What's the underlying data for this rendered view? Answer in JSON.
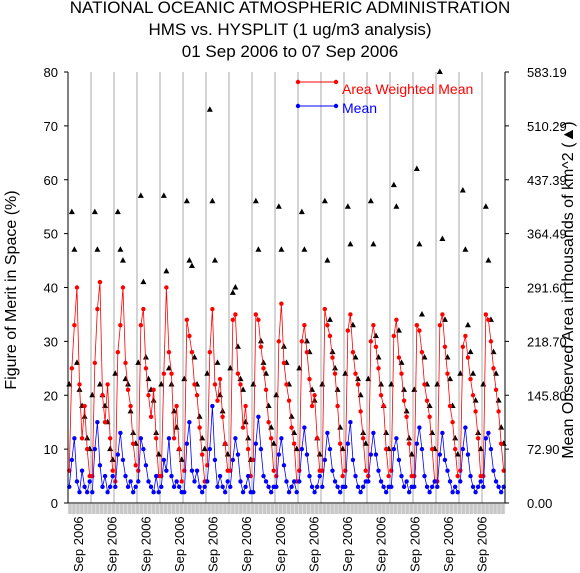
{
  "chart_data": {
    "type": "line",
    "title": [
      "NATIONAL OCEANIC ATMOSPHERIC ADMINISTRATION",
      "HMS vs. HYSPLIT (1 ug/m3 analysis)",
      "01 Sep 2006 to 07 Sep 2006"
    ],
    "ylabel": "Figure of Merit in Space (%)",
    "y2label": "Mean Observed Area in thousands of km^2 (▲)",
    "ylim": [
      0,
      80
    ],
    "yticks": [
      "0",
      "10",
      "20",
      "30",
      "40",
      "50",
      "60",
      "70",
      "80"
    ],
    "y2ticks": [
      "0.00",
      "72.90",
      "145.80",
      "218.70",
      "291.60",
      "364.49",
      "437.39",
      "510.29",
      "583.19"
    ],
    "xtick_label": "Sep 2006",
    "xtick_count": 13,
    "legend": {
      "position": "top-right",
      "entries": [
        {
          "label": "Area Weighted Mean",
          "color": "#ff0000"
        },
        {
          "label": "Mean",
          "color": "#0000ff"
        }
      ]
    },
    "area_color": "#000000",
    "groups": [
      {
        "awm": [
          6,
          25,
          33,
          40,
          22,
          12,
          18,
          10,
          5
        ],
        "mean": [
          3,
          8,
          12,
          4,
          2,
          6,
          3,
          2,
          4
        ],
        "area": [
          22,
          54,
          47,
          26,
          21,
          18,
          16,
          12,
          10
        ]
      },
      {
        "awm": [
          5,
          26,
          36,
          41,
          20,
          15,
          22,
          12,
          6
        ],
        "mean": [
          2,
          10,
          15,
          7,
          3,
          5,
          2,
          3,
          5
        ],
        "area": [
          20,
          54,
          47,
          22,
          20,
          18,
          15,
          10,
          8
        ]
      },
      {
        "awm": [
          4,
          28,
          33,
          40,
          26,
          21,
          18,
          11,
          7
        ],
        "mean": [
          3,
          9,
          13,
          8,
          5,
          3,
          4,
          2,
          3
        ],
        "area": [
          24,
          54,
          47,
          45,
          23,
          22,
          17,
          13,
          11
        ]
      },
      {
        "awm": [
          6,
          33,
          36,
          25,
          20,
          16,
          21,
          12,
          5
        ],
        "mean": [
          4,
          12,
          10,
          7,
          4,
          3,
          2,
          5,
          2
        ],
        "area": [
          26,
          57,
          41,
          27,
          23,
          21,
          19,
          13,
          9
        ]
      },
      {
        "awm": [
          5,
          24,
          40,
          28,
          24,
          12,
          18,
          10,
          4
        ],
        "mean": [
          3,
          8,
          6,
          12,
          5,
          3,
          4,
          3,
          2
        ],
        "area": [
          22,
          57,
          43,
          25,
          22,
          17,
          14,
          10,
          8
        ]
      },
      {
        "awm": [
          6,
          34,
          31,
          28,
          22,
          20,
          14,
          9,
          4
        ],
        "mean": [
          2,
          11,
          15,
          6,
          4,
          6,
          3,
          2,
          3
        ],
        "area": [
          23,
          56,
          45,
          44,
          27,
          22,
          16,
          12,
          10
        ]
      },
      {
        "awm": [
          7,
          28,
          36,
          22,
          19,
          23,
          16,
          11,
          6
        ],
        "mean": [
          4,
          10,
          18,
          8,
          3,
          5,
          3,
          2,
          4
        ],
        "area": [
          24,
          73,
          56,
          45,
          26,
          20,
          17,
          11,
          9
        ]
      },
      {
        "awm": [
          6,
          34,
          35,
          24,
          22,
          14,
          18,
          10,
          5
        ],
        "mean": [
          3,
          8,
          12,
          9,
          4,
          2,
          3,
          5,
          2
        ],
        "area": [
          25,
          39,
          40,
          29,
          23,
          21,
          15,
          12,
          8
        ]
      },
      {
        "awm": [
          8,
          35,
          34,
          29,
          25,
          21,
          15,
          12,
          6
        ],
        "mean": [
          2,
          11,
          16,
          10,
          5,
          4,
          3,
          2,
          3
        ],
        "area": [
          22,
          56,
          47,
          30,
          26,
          24,
          18,
          14,
          11
        ]
      },
      {
        "awm": [
          5,
          30,
          37,
          26,
          22,
          19,
          14,
          11,
          4
        ],
        "mean": [
          3,
          9,
          12,
          7,
          4,
          2,
          3,
          4,
          2
        ],
        "area": [
          20,
          55,
          47,
          29,
          26,
          22,
          16,
          13,
          10
        ]
      },
      {
        "awm": [
          6,
          30,
          33,
          28,
          23,
          18,
          20,
          12,
          6
        ],
        "mean": [
          4,
          10,
          14,
          9,
          5,
          3,
          2,
          3,
          5
        ],
        "area": [
          25,
          54,
          47,
          30,
          28,
          21,
          19,
          12,
          9
        ]
      },
      {
        "awm": [
          6,
          36,
          33,
          31,
          27,
          24,
          18,
          11,
          5
        ],
        "mean": [
          3,
          8,
          13,
          10,
          6,
          4,
          3,
          2,
          3
        ],
        "area": [
          22,
          56,
          45,
          34,
          28,
          25,
          21,
          14,
          10
        ]
      },
      {
        "awm": [
          6,
          32,
          35,
          28,
          24,
          22,
          17,
          12,
          6
        ],
        "mean": [
          3,
          11,
          15,
          8,
          5,
          3,
          2,
          3,
          4
        ],
        "area": [
          24,
          55,
          48,
          33,
          27,
          23,
          20,
          13,
          11
        ]
      },
      {
        "awm": [
          5,
          30,
          33,
          29,
          25,
          20,
          18,
          10,
          5
        ],
        "mean": [
          4,
          9,
          13,
          9,
          6,
          4,
          3,
          2,
          3
        ],
        "area": [
          23,
          56,
          48,
          31,
          27,
          22,
          18,
          13,
          10
        ]
      },
      {
        "awm": [
          6,
          31,
          34,
          27,
          24,
          19,
          16,
          11,
          5
        ],
        "mean": [
          3,
          10,
          12,
          8,
          5,
          3,
          4,
          2,
          3
        ],
        "area": [
          22,
          59,
          55,
          32,
          26,
          21,
          17,
          12,
          9
        ]
      },
      {
        "awm": [
          5,
          33,
          32,
          28,
          22,
          19,
          16,
          10,
          4
        ],
        "mean": [
          3,
          11,
          14,
          10,
          5,
          3,
          2,
          3,
          4
        ],
        "area": [
          21,
          62,
          48,
          35,
          27,
          22,
          18,
          13,
          10
        ]
      },
      {
        "awm": [
          4,
          33,
          35,
          29,
          24,
          18,
          15,
          10,
          5
        ],
        "mean": [
          3,
          9,
          13,
          8,
          6,
          4,
          2,
          3,
          2
        ],
        "area": [
          22,
          80,
          49,
          34,
          27,
          23,
          18,
          12,
          9
        ]
      },
      {
        "awm": [
          6,
          29,
          31,
          27,
          23,
          20,
          17,
          12,
          5
        ],
        "mean": [
          4,
          10,
          14,
          9,
          5,
          3,
          2,
          3,
          4
        ],
        "area": [
          24,
          58,
          47,
          33,
          28,
          24,
          19,
          13,
          10
        ]
      },
      {
        "awm": [
          5,
          35,
          34,
          30,
          25,
          21,
          17,
          11,
          6
        ],
        "mean": [
          3,
          12,
          13,
          10,
          6,
          4,
          3,
          2,
          3
        ],
        "area": [
          22,
          55,
          45,
          34,
          28,
          24,
          19,
          14,
          11
        ]
      }
    ]
  }
}
